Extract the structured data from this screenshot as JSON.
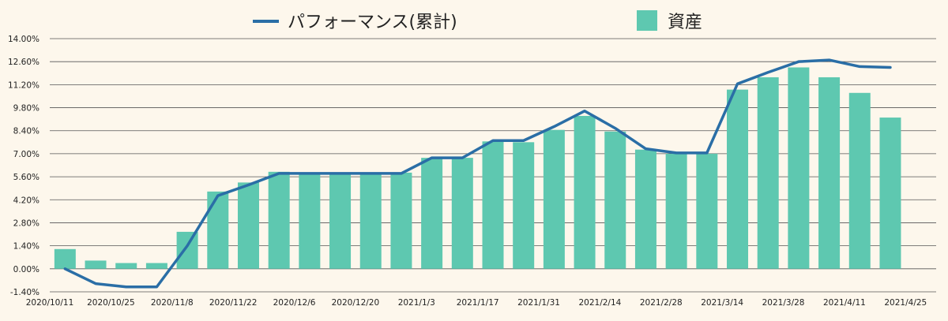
{
  "chart_data": {
    "type": "bar",
    "colors": {
      "bar": "#5ec8b0",
      "line": "#2a6ea6",
      "grid": "#555555",
      "background": "#fdf7ec"
    },
    "legend": {
      "position": "top",
      "items": [
        {
          "label": "パフォーマンス(累計)",
          "kind": "line",
          "color": "#2a6ea6"
        },
        {
          "label": "資産",
          "kind": "bar",
          "color": "#5ec8b0"
        }
      ]
    },
    "ylim": [
      -1.4,
      14.0
    ],
    "y_ticks": [
      "-1.40%",
      "0.00%",
      "1.40%",
      "2.80%",
      "4.20%",
      "5.60%",
      "7.00%",
      "8.40%",
      "9.80%",
      "11.20%",
      "12.60%",
      "14.00%"
    ],
    "y_tick_values": [
      -1.4,
      0,
      1.4,
      2.8,
      4.2,
      5.6,
      7.0,
      8.4,
      9.8,
      11.2,
      12.6,
      14.0
    ],
    "x_tick_labels": [
      "2020/10/11",
      "2020/10/25",
      "2020/11/8",
      "2020/11/22",
      "2020/12/6",
      "2020/12/20",
      "2021/1/3",
      "2021/1/17",
      "2021/1/31",
      "2021/2/14",
      "2021/2/28",
      "2021/3/14",
      "2021/3/28",
      "2021/4/11",
      "2021/4/25"
    ],
    "categories": [
      "2020/10/11",
      "2020/10/18",
      "2020/10/25",
      "2020/11/1",
      "2020/11/8",
      "2020/11/15",
      "2020/11/22",
      "2020/11/29",
      "2020/12/6",
      "2020/12/13",
      "2020/12/20",
      "2020/12/27",
      "2021/1/3",
      "2021/1/10",
      "2021/1/17",
      "2021/1/24",
      "2021/1/31",
      "2021/2/7",
      "2021/2/14",
      "2021/2/21",
      "2021/2/28",
      "2021/3/7",
      "2021/3/14",
      "2021/3/21",
      "2021/3/28",
      "2021/4/4",
      "2021/4/11",
      "2021/4/18"
    ],
    "series": [
      {
        "name": "資産",
        "type": "bar",
        "values": [
          1.2,
          0.5,
          0.35,
          0.35,
          2.25,
          4.7,
          5.25,
          5.9,
          5.85,
          5.85,
          5.85,
          5.85,
          6.75,
          6.75,
          7.75,
          7.7,
          8.45,
          9.3,
          8.35,
          7.25,
          7.0,
          7.0,
          10.9,
          11.65,
          12.25,
          11.65,
          10.7,
          9.2
        ]
      },
      {
        "name": "パフォーマンス(累計)",
        "type": "line",
        "values": [
          0.0,
          -0.9,
          -1.1,
          -1.1,
          1.4,
          4.45,
          5.1,
          5.8,
          5.8,
          5.8,
          5.8,
          5.8,
          6.75,
          6.75,
          7.8,
          7.8,
          8.65,
          9.6,
          8.55,
          7.3,
          7.05,
          7.05,
          11.25,
          11.95,
          12.6,
          12.7,
          12.3,
          12.25
        ]
      }
    ]
  }
}
